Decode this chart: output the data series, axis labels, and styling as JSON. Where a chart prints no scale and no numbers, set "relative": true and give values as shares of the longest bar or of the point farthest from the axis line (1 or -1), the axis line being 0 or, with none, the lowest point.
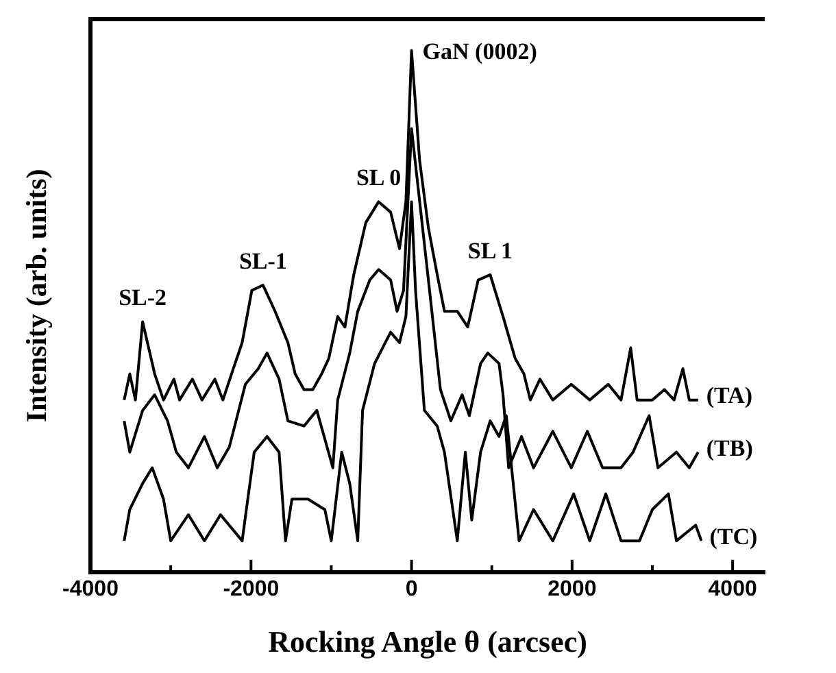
{
  "chart_data": {
    "type": "line",
    "relative": true,
    "xlabel": "Rocking Angle θ (arcsec)",
    "ylabel": "Intensity (arb. units)",
    "xlim": [
      -4000,
      4400
    ],
    "xticks": [
      -4000,
      {
        "value": -3000,
        "label": null
      },
      -2000,
      {
        "value": -1000,
        "label": null
      },
      0,
      {
        "value": 1000,
        "label": null
      },
      2000,
      {
        "value": 3000,
        "label": null
      },
      4000
    ],
    "grid": false,
    "legend": false,
    "marker": "none",
    "line_style": "solid",
    "annotations": [
      {
        "text": "GaN (0002)",
        "x": 0,
        "y": 1.0
      },
      {
        "text": "SL 0",
        "x": -410,
        "y": 0.71
      },
      {
        "text": "SL-1",
        "x": -1850,
        "y": 0.55
      },
      {
        "text": "SL-2",
        "x": -3350,
        "y": 0.48
      },
      {
        "text": "SL 1",
        "x": 980,
        "y": 0.57
      }
    ],
    "series": [
      {
        "name": "(TA)",
        "color": "#000000",
        "x": [
          -3580,
          -3510,
          -3440,
          -3350,
          -3260,
          -3200,
          -3090,
          -2960,
          -2890,
          -2730,
          -2610,
          -2450,
          -2350,
          -2220,
          -2110,
          -1990,
          -1850,
          -1700,
          -1540,
          -1450,
          -1340,
          -1230,
          -1120,
          -1030,
          -920,
          -830,
          -720,
          -570,
          -410,
          -260,
          -150,
          -70,
          0,
          100,
          210,
          320,
          410,
          570,
          700,
          830,
          980,
          1140,
          1290,
          1400,
          1480,
          1600,
          1760,
          1990,
          2220,
          2450,
          2610,
          2730,
          2810,
          3000,
          3150,
          3270,
          3380,
          3460,
          3570
        ],
        "values": [
          0.33,
          0.38,
          0.33,
          0.48,
          0.42,
          0.38,
          0.33,
          0.37,
          0.33,
          0.37,
          0.33,
          0.37,
          0.33,
          0.39,
          0.44,
          0.54,
          0.55,
          0.5,
          0.44,
          0.38,
          0.35,
          0.35,
          0.38,
          0.41,
          0.49,
          0.47,
          0.57,
          0.67,
          0.71,
          0.69,
          0.62,
          0.71,
          1.0,
          0.79,
          0.66,
          0.57,
          0.5,
          0.5,
          0.47,
          0.56,
          0.57,
          0.49,
          0.41,
          0.38,
          0.33,
          0.37,
          0.33,
          0.36,
          0.33,
          0.36,
          0.33,
          0.43,
          0.33,
          0.33,
          0.35,
          0.33,
          0.39,
          0.33,
          0.33
        ]
      },
      {
        "name": "(TB)",
        "color": "#000000",
        "x": [
          -3580,
          -3510,
          -3350,
          -3200,
          -3040,
          -2930,
          -2780,
          -2580,
          -2420,
          -2270,
          -2070,
          -1910,
          -1800,
          -1650,
          -1540,
          -1340,
          -1180,
          -980,
          -920,
          -770,
          -670,
          -520,
          -410,
          -260,
          -180,
          -100,
          0,
          210,
          360,
          490,
          630,
          720,
          860,
          950,
          1090,
          1140,
          1210,
          1370,
          1520,
          1760,
          1990,
          2190,
          2380,
          2610,
          2760,
          2960,
          3070,
          3300,
          3460,
          3570
        ],
        "values": [
          0.29,
          0.23,
          0.31,
          0.34,
          0.29,
          0.23,
          0.2,
          0.26,
          0.2,
          0.24,
          0.36,
          0.39,
          0.42,
          0.37,
          0.29,
          0.28,
          0.31,
          0.2,
          0.33,
          0.42,
          0.5,
          0.56,
          0.58,
          0.56,
          0.5,
          0.54,
          0.85,
          0.56,
          0.35,
          0.29,
          0.34,
          0.3,
          0.4,
          0.42,
          0.4,
          0.34,
          0.2,
          0.26,
          0.2,
          0.27,
          0.2,
          0.27,
          0.2,
          0.2,
          0.23,
          0.3,
          0.2,
          0.23,
          0.2,
          0.23
        ]
      },
      {
        "name": "(TC)",
        "color": "#000000",
        "x": [
          -3580,
          -3510,
          -3350,
          -3230,
          -3090,
          -3000,
          -2780,
          -2580,
          -2380,
          -2110,
          -2040,
          -1960,
          -1800,
          -1650,
          -1570,
          -1490,
          -1290,
          -1080,
          -1000,
          -870,
          -770,
          -670,
          -610,
          -460,
          -260,
          -150,
          -70,
          0,
          50,
          160,
          320,
          410,
          570,
          670,
          750,
          860,
          980,
          1090,
          1180,
          1260,
          1340,
          1520,
          1760,
          2020,
          2220,
          2420,
          2610,
          2840,
          3000,
          3200,
          3300,
          3540,
          3610
        ],
        "values": [
          0.06,
          0.12,
          0.17,
          0.2,
          0.14,
          0.06,
          0.11,
          0.06,
          0.11,
          0.06,
          0.14,
          0.23,
          0.26,
          0.23,
          0.06,
          0.14,
          0.14,
          0.12,
          0.06,
          0.23,
          0.17,
          0.06,
          0.31,
          0.4,
          0.46,
          0.44,
          0.49,
          0.71,
          0.54,
          0.31,
          0.28,
          0.23,
          0.06,
          0.23,
          0.1,
          0.23,
          0.29,
          0.26,
          0.3,
          0.18,
          0.06,
          0.12,
          0.06,
          0.15,
          0.06,
          0.15,
          0.06,
          0.06,
          0.12,
          0.15,
          0.06,
          0.09,
          0.06
        ]
      }
    ]
  }
}
